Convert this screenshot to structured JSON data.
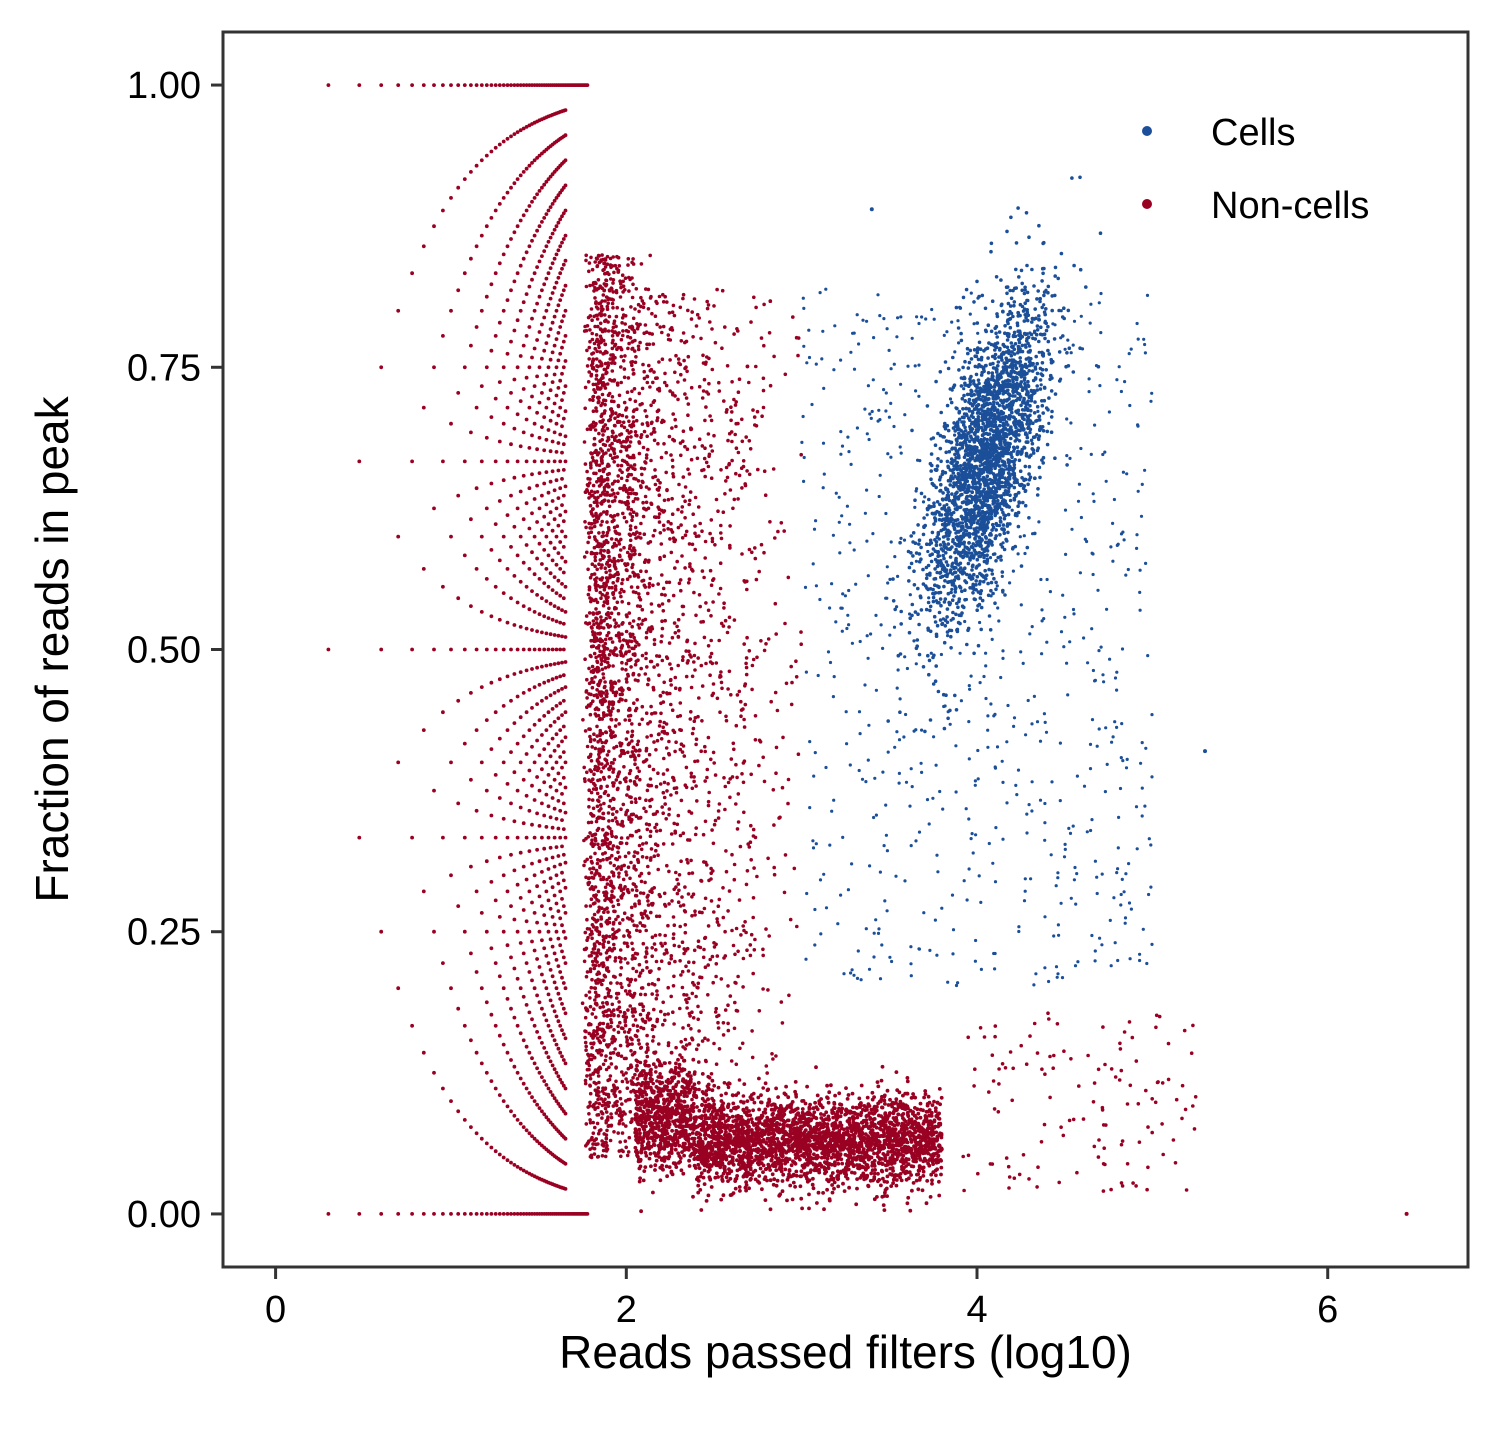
{
  "chart_data": {
    "type": "scatter",
    "title": "",
    "xlabel": "Reads passed filters (log10)",
    "ylabel": "Fraction of reads in peak",
    "xlim": [
      -0.3,
      6.8
    ],
    "ylim": [
      -0.047,
      1.047
    ],
    "x_ticks": [
      "0",
      "2",
      "4",
      "6"
    ],
    "x_tick_values": [
      0,
      2,
      4,
      6
    ],
    "y_ticks": [
      "0.00",
      "0.25",
      "0.50",
      "0.75",
      "1.00"
    ],
    "y_tick_values": [
      0,
      0.25,
      0.5,
      0.75,
      1.0
    ],
    "grid": false,
    "legend_position": "top-right",
    "series": [
      {
        "name": "Cells",
        "color": "#1b4f99",
        "description_points": [
          [
            3.95,
            0.66
          ],
          [
            4.1,
            0.7
          ],
          [
            4.2,
            0.74
          ],
          [
            3.85,
            0.6
          ],
          [
            4.3,
            0.76
          ],
          [
            3.8,
            0.5
          ],
          [
            3.6,
            0.42
          ],
          [
            3.3,
            0.3
          ],
          [
            3.4,
            0.89
          ],
          [
            4.5,
            0.8
          ],
          [
            4.9,
            0.78
          ],
          [
            5.2,
            0.67
          ],
          [
            5.3,
            0.41
          ],
          [
            5.0,
            0.25
          ],
          [
            4.3,
            0.21
          ]
        ]
      },
      {
        "name": "Non-cells",
        "color": "#990022",
        "description_points": [
          [
            0.3,
            1.0
          ],
          [
            1.4,
            1.0
          ],
          [
            0.3,
            0.0
          ],
          [
            1.9,
            0.0
          ],
          [
            1.9,
            0.5
          ],
          [
            1.85,
            0.7
          ],
          [
            1.9,
            0.4
          ],
          [
            2.6,
            0.07
          ],
          [
            3.2,
            0.07
          ],
          [
            3.8,
            0.06
          ],
          [
            2.5,
            0.6
          ],
          [
            3.0,
            0.79
          ],
          [
            4.8,
            0.1
          ],
          [
            5.2,
            0.06
          ],
          [
            6.45,
            0.0
          ]
        ]
      }
    ]
  }
}
